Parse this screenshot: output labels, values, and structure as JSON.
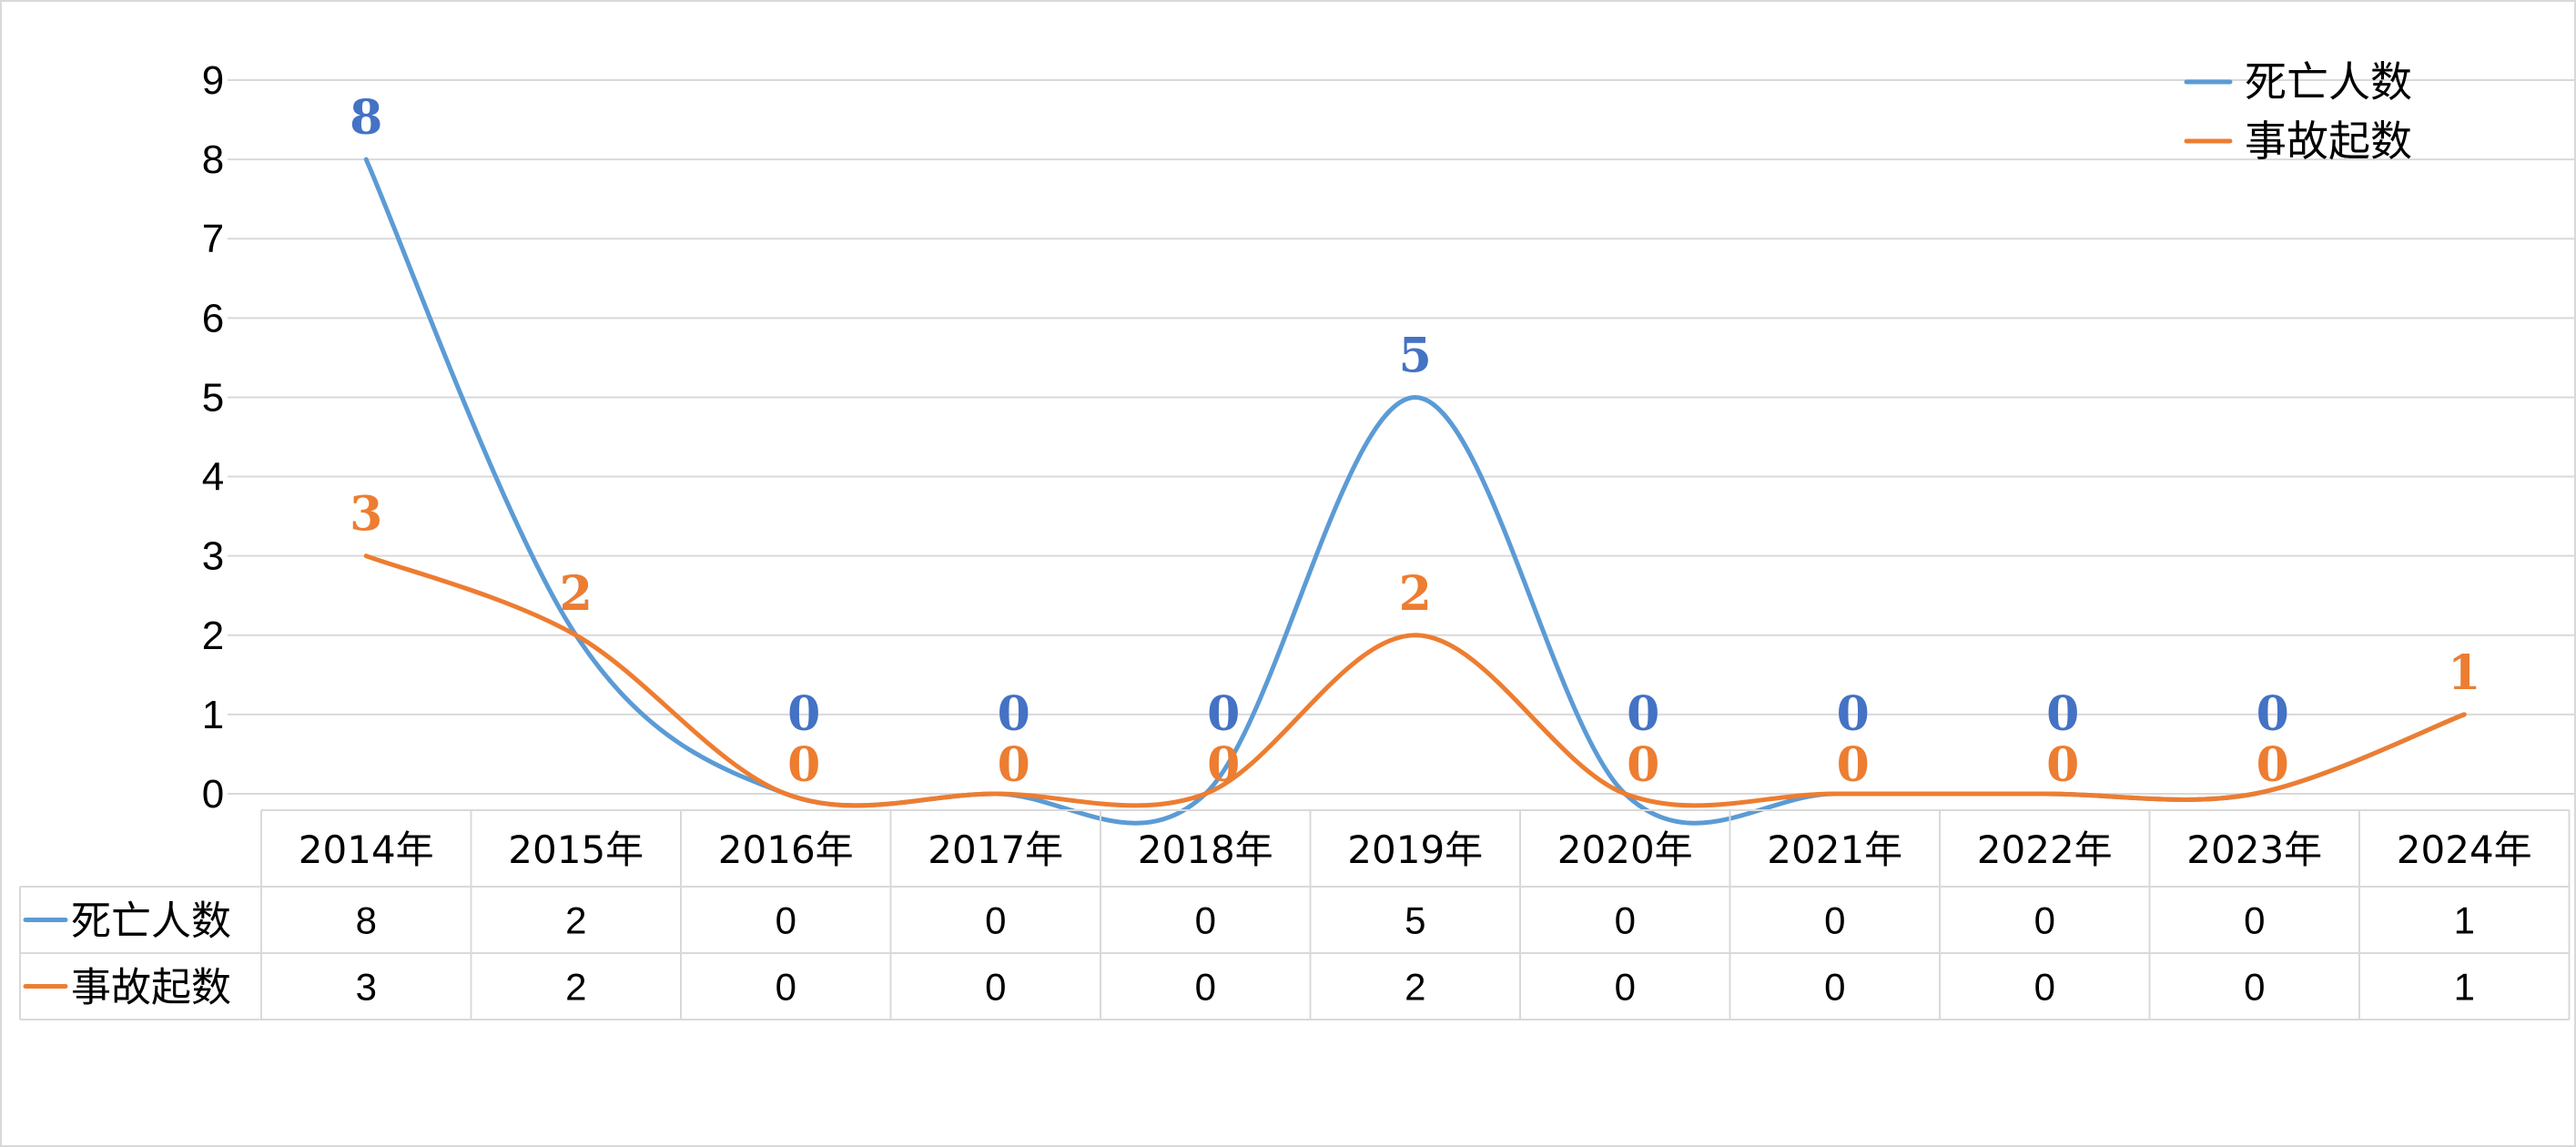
{
  "chart_data": {
    "type": "line",
    "smooth": true,
    "categories": [
      "2014年",
      "2015年",
      "2016年",
      "2017年",
      "2018年",
      "2019年",
      "2020年",
      "2021年",
      "2022年",
      "2023年",
      "2024年"
    ],
    "series": [
      {
        "name": "死亡人数",
        "color": "#5B9BD5",
        "label_color": "#4472C4",
        "values": [
          8,
          2,
          0,
          0,
          0,
          5,
          0,
          0,
          0,
          0,
          1
        ]
      },
      {
        "name": "事故起数",
        "color": "#ED7D31",
        "label_color": "#ED7D31",
        "values": [
          3,
          2,
          0,
          0,
          0,
          2,
          0,
          0,
          0,
          0,
          1
        ]
      }
    ],
    "ylim": [
      0,
      9
    ],
    "yticks": [
      0,
      1,
      2,
      3,
      4,
      5,
      6,
      7,
      8,
      9
    ],
    "grid": true,
    "legend": "top-right",
    "data_table": true,
    "data_labels": true,
    "gridline_color": "#D9D9D9",
    "border_color": "#D9D9D9"
  }
}
